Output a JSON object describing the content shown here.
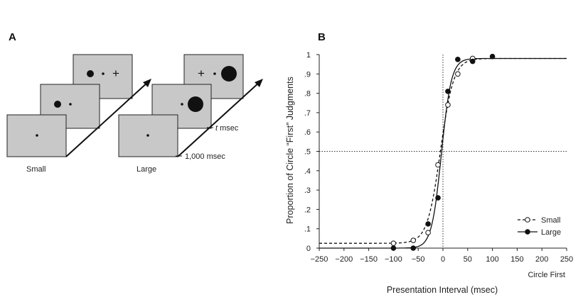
{
  "panel_a": {
    "letter": "A",
    "small": {
      "label": "Small"
    },
    "large": {
      "label": "Large"
    },
    "interval_t_prefix": "t",
    "interval_t_suffix": " msec",
    "interval_base": "1,000 msec",
    "fixation_symbol": "+"
  },
  "panel_b": {
    "letter": "B"
  },
  "chart_data": {
    "type": "scatter",
    "title": "",
    "xlabel": "Presentation Interval (msec)",
    "x_annotation": "Circle First",
    "ylabel": "Proportion of Circle “First” Judgments",
    "xlim": [
      -250,
      250
    ],
    "ylim": [
      0,
      1
    ],
    "x_ticks": [
      -250,
      -200,
      -150,
      -100,
      -50,
      0,
      50,
      100,
      150,
      200,
      250
    ],
    "x_tick_labels": [
      "−250",
      "−200",
      "−150",
      "−100",
      "−50",
      "0",
      "50",
      "100",
      "150",
      "200",
      "250"
    ],
    "y_ticks": [
      0,
      0.1,
      0.2,
      0.3,
      0.4,
      0.5,
      0.6,
      0.7,
      0.8,
      0.9,
      1
    ],
    "y_tick_labels": [
      "0",
      ".1",
      ".2",
      ".3",
      ".4",
      ".5",
      ".6",
      ".7",
      ".8",
      ".9",
      "1"
    ],
    "reference_lines": {
      "x": 0,
      "y": 0.5
    },
    "legend_position": "bottom-right",
    "series": [
      {
        "name": "Small",
        "marker": "open-circle",
        "line": "dashed",
        "x": [
          -100,
          -60,
          -30,
          -10,
          10,
          30,
          60
        ],
        "y": [
          0.025,
          0.04,
          0.08,
          0.43,
          0.74,
          0.9,
          0.98
        ],
        "fit": {
          "lower": 0.025,
          "upper": 0.98,
          "x50": -5,
          "slope": 0.075
        }
      },
      {
        "name": "Large",
        "marker": "filled-circle",
        "line": "solid",
        "x": [
          -100,
          -60,
          -30,
          -10,
          10,
          30,
          60,
          100
        ],
        "y": [
          0.0,
          0.0,
          0.125,
          0.26,
          0.81,
          0.975,
          0.965,
          0.99
        ],
        "fit": {
          "lower": 0.0,
          "upper": 0.98,
          "x50": -3,
          "slope": 0.1
        }
      }
    ]
  }
}
